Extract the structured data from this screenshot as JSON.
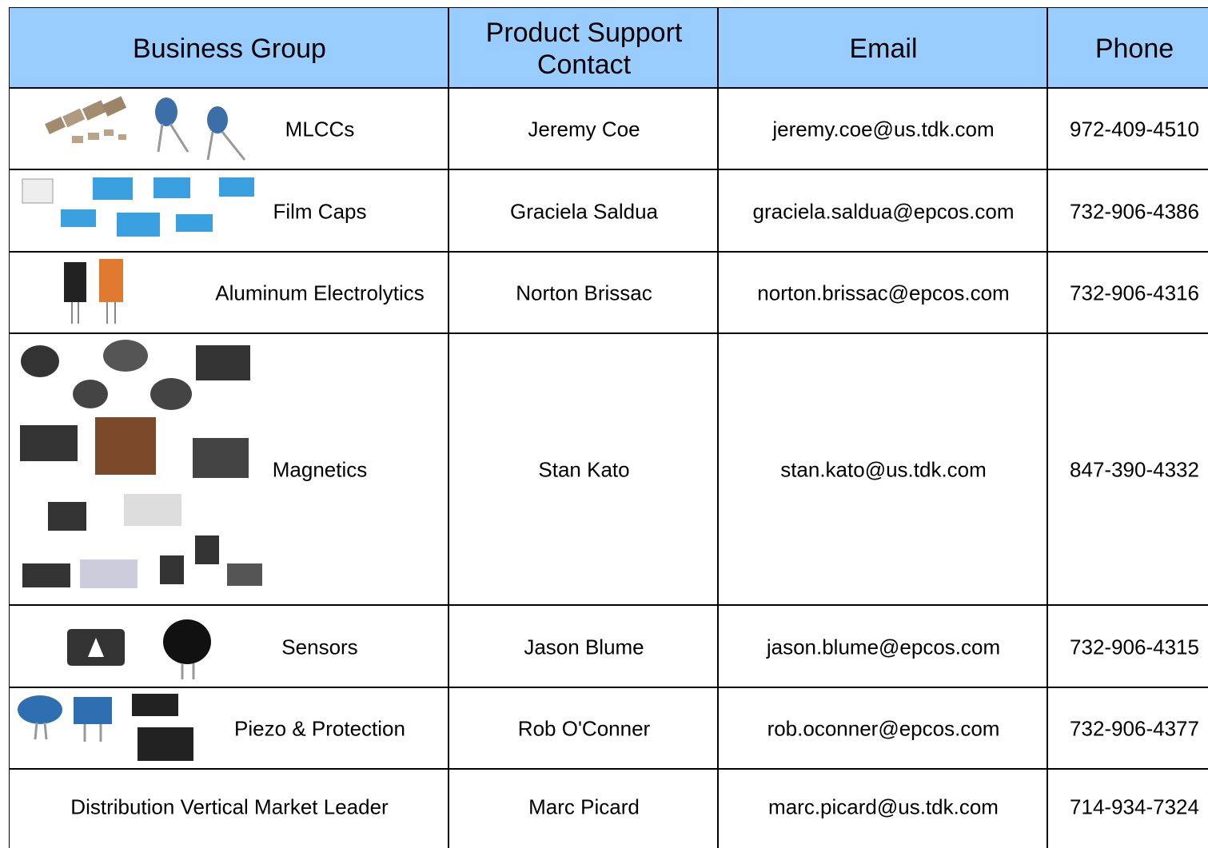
{
  "table": {
    "header": [
      "Business Group",
      "Product Support Contact",
      "Email",
      "Phone"
    ],
    "rows": [
      [
        "MLCCs",
        "Jeremy Coe",
        "jeremy.coe@us.tdk.com",
        "972-409-4510"
      ],
      [
        "Film Caps",
        "Graciela Saldua",
        "graciela.saldua@epcos.com",
        "732-906-4386"
      ],
      [
        "Aluminum Electrolytics",
        "Norton Brissac",
        "norton.brissac@epcos.com",
        "732-906-4316"
      ],
      [
        "Magnetics",
        "Stan Kato",
        "stan.kato@us.tdk.com",
        "847-390-4332"
      ],
      [
        "Sensors",
        "Jason Blume",
        "jason.blume@epcos.com",
        "732-906-4315"
      ],
      [
        "Piezo & Protection",
        "Rob O'Conner",
        "rob.oconner@epcos.com",
        "732-906-4377"
      ],
      [
        "Distribution Vertical Market Leader",
        "Marc Picard",
        "marc.picard@us.tdk.com",
        "714-934-7324"
      ]
    ]
  }
}
